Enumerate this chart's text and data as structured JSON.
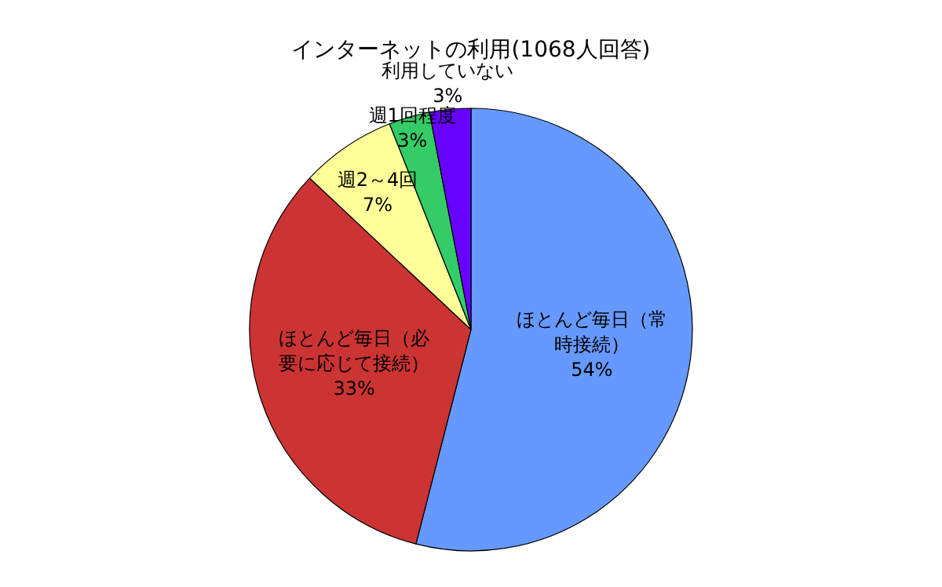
{
  "chart_data": {
    "type": "pie",
    "title": "インターネットの利用(1068人回答)",
    "categories": [
      "ほとんど毎日（常時接続）",
      "ほとんど毎日（必要に応じて接続）",
      "週2～4回",
      "週1回程度",
      "利用していない"
    ],
    "values": [
      54,
      33,
      7,
      3,
      3
    ],
    "value_labels": [
      "54%",
      "33%",
      "7%",
      "3%",
      "3%"
    ],
    "colors": [
      "#6699ff",
      "#cc3333",
      "#ffff99",
      "#33cc66",
      "#6600ff"
    ],
    "legend": false
  }
}
